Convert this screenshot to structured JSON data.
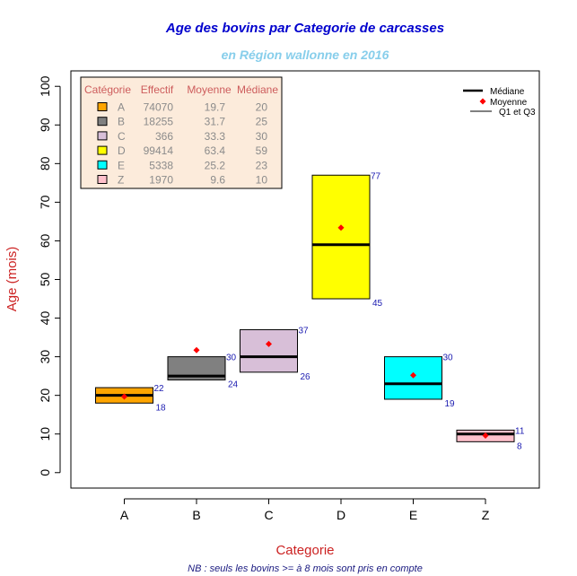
{
  "chart_data": {
    "type": "box",
    "title": "Age des bovins par Categorie de carcasses",
    "subtitle": "en Région wallonne en 2016",
    "xlabel": "Categorie",
    "ylabel": "Age (mois)",
    "footnote": "NB : seuls les bovins >= à 8 mois sont pris en compte",
    "ylim": [
      -4,
      104
    ],
    "yticks": [
      0,
      10,
      20,
      30,
      40,
      50,
      60,
      70,
      80,
      90,
      100
    ],
    "categories": [
      "A",
      "B",
      "C",
      "D",
      "E",
      "Z"
    ],
    "boxes": [
      {
        "category": "A",
        "q1": 18,
        "median": 20,
        "q3": 22,
        "mean": 19.7,
        "color": "#FFA500",
        "q1_label": "18",
        "q3_label": "22"
      },
      {
        "category": "B",
        "q1": 24,
        "median": 25,
        "q3": 30,
        "mean": 31.7,
        "color": "#808080",
        "q1_label": "24",
        "q3_label": "30"
      },
      {
        "category": "C",
        "q1": 26,
        "median": 30,
        "q3": 37,
        "mean": 33.3,
        "color": "#D8BFD8",
        "q1_label": "26",
        "q3_label": "37"
      },
      {
        "category": "D",
        "q1": 45,
        "median": 59,
        "q3": 77,
        "mean": 63.4,
        "color": "#FFFF00",
        "q1_label": "45",
        "q3_label": "77"
      },
      {
        "category": "E",
        "q1": 19,
        "median": 23,
        "q3": 30,
        "mean": 25.2,
        "color": "#00FFFF",
        "q1_label": "19",
        "q3_label": "30"
      },
      {
        "category": "Z",
        "q1": 8,
        "median": 10,
        "q3": 11,
        "mean": 9.6,
        "color": "#FFC0CB",
        "q1_label": "8",
        "q3_label": "11"
      }
    ],
    "table": {
      "headers": [
        "Catégorie",
        "Effectif",
        "Moyenne",
        "Médiane"
      ],
      "rows": [
        {
          "cat": "A",
          "effectif": "74070",
          "moyenne": "19.7",
          "mediane": "20",
          "color": "#FFA500"
        },
        {
          "cat": "B",
          "effectif": "18255",
          "moyenne": "31.7",
          "mediane": "25",
          "color": "#808080"
        },
        {
          "cat": "C",
          "effectif": "366",
          "moyenne": "33.3",
          "mediane": "30",
          "color": "#D8BFD8"
        },
        {
          "cat": "D",
          "effectif": "99414",
          "moyenne": "63.4",
          "mediane": "59",
          "color": "#FFFF00"
        },
        {
          "cat": "E",
          "effectif": "5338",
          "moyenne": "25.2",
          "mediane": "23",
          "color": "#00FFFF"
        },
        {
          "cat": "Z",
          "effectif": "1970",
          "moyenne": "9.6",
          "mediane": "10",
          "color": "#FFC0CB"
        }
      ]
    },
    "legend": {
      "placement": "top-right",
      "items": [
        {
          "label": "Médiane",
          "symbol": "thick-line"
        },
        {
          "label": "Moyenne",
          "symbol": "diamond"
        },
        {
          "label": "Q1 et Q3",
          "symbol": "thin-line"
        }
      ]
    },
    "colors": {
      "title": "#0000CD",
      "subtitle": "#87CEEB",
      "axis_label": "#CC2222",
      "quartile_label": "#1A1AB0",
      "mean_marker": "#FF0000",
      "table_header": "#CD5C5C",
      "table_text": "#8B8B8B",
      "table_bg": "#FCEBDB",
      "footnote": "#1A1A80"
    }
  }
}
